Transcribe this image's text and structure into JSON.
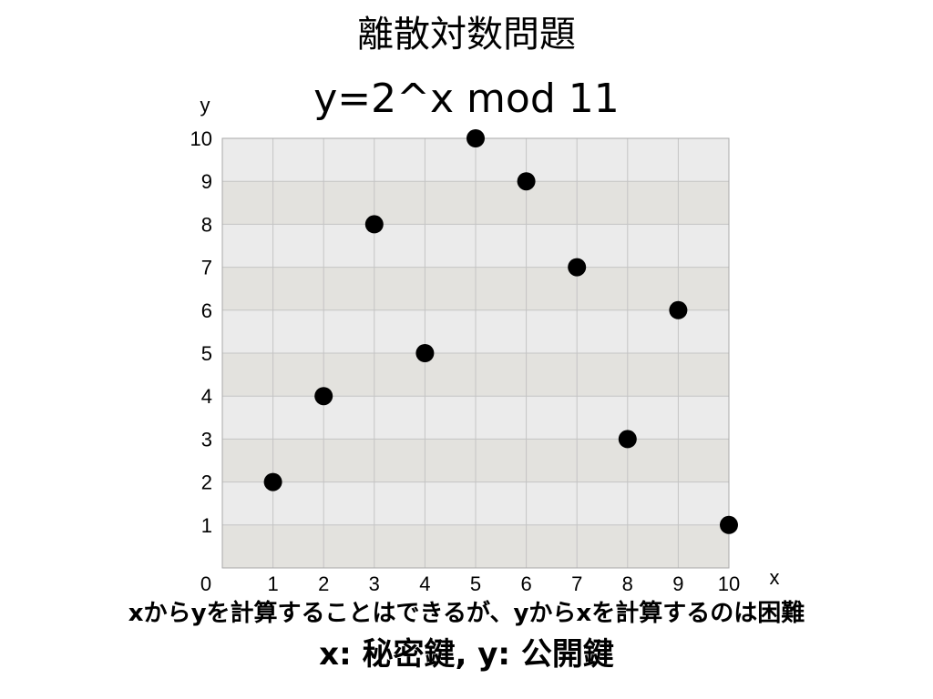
{
  "slide": {
    "title": "離散対数問題",
    "caption": "xからyを計算することはできるが、yからxを計算するのは困難",
    "key_note": "x: 秘密鍵, y: 公開鍵"
  },
  "chart_data": {
    "type": "scatter",
    "title": "y=2^x mod 11",
    "xlabel": "x",
    "ylabel": "y",
    "xlim": [
      0,
      10
    ],
    "ylim": [
      0,
      10
    ],
    "x_ticks": [
      "0",
      "1",
      "2",
      "3",
      "4",
      "5",
      "6",
      "7",
      "8",
      "9",
      "10"
    ],
    "y_ticks": [
      "1",
      "2",
      "3",
      "4",
      "5",
      "6",
      "7",
      "8",
      "9",
      "10"
    ],
    "grid": true,
    "points": [
      {
        "x": 1,
        "y": 2
      },
      {
        "x": 2,
        "y": 4
      },
      {
        "x": 3,
        "y": 8
      },
      {
        "x": 4,
        "y": 5
      },
      {
        "x": 5,
        "y": 10
      },
      {
        "x": 6,
        "y": 9
      },
      {
        "x": 7,
        "y": 7
      },
      {
        "x": 8,
        "y": 3
      },
      {
        "x": 9,
        "y": 6
      },
      {
        "x": 10,
        "y": 1
      }
    ],
    "colors": {
      "band_light": "#ebebeb",
      "band_dark": "#e3e2de",
      "grid": "#c4c4c4",
      "border": "#a8a8a8",
      "marker": "#000000"
    }
  }
}
